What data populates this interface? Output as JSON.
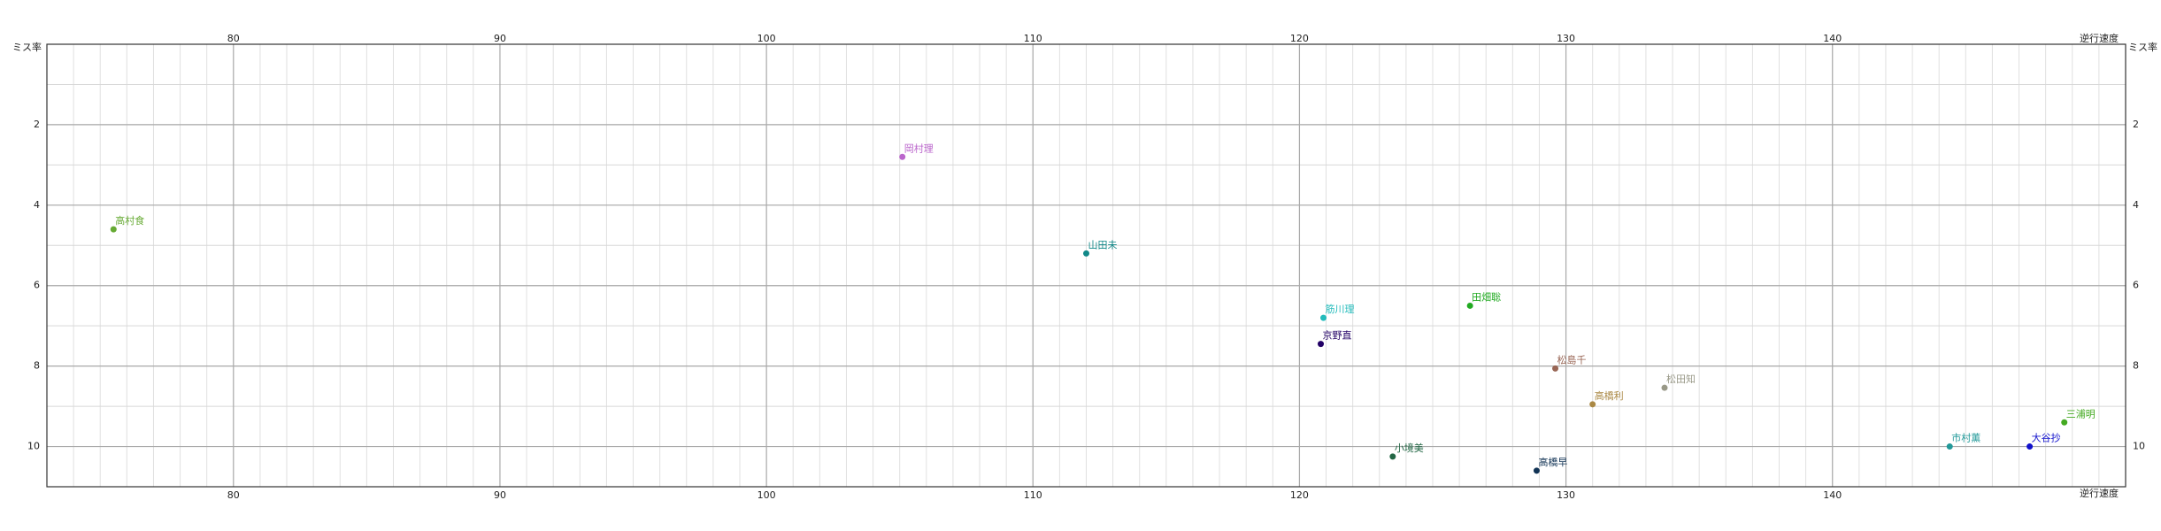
{
  "chart_data": {
    "type": "scatter",
    "xlabel": "逆行速度",
    "ylabel": "ミス率",
    "xlim": [
      73,
      151
    ],
    "ylim": [
      0,
      11
    ],
    "y_inverted": true,
    "xticks": [
      80,
      90,
      100,
      110,
      120,
      130,
      140
    ],
    "yticks": [
      2,
      4,
      6,
      8,
      10
    ],
    "grid": true,
    "minor_grid": true,
    "series": [
      {
        "name": "高村食",
        "color": "#66aa33",
        "x": [
          75.5
        ],
        "values": [
          4.6
        ]
      },
      {
        "name": "岡村理",
        "color": "#bb66cc",
        "x": [
          105.1
        ],
        "values": [
          2.8
        ]
      },
      {
        "name": "山田未",
        "color": "#118888",
        "x": [
          112.0
        ],
        "values": [
          5.2
        ]
      },
      {
        "name": "田畑聡",
        "color": "#22aa22",
        "x": [
          126.4
        ],
        "values": [
          6.5
        ]
      },
      {
        "name": "筋川理",
        "color": "#22bbbb",
        "x": [
          120.9
        ],
        "values": [
          6.8
        ]
      },
      {
        "name": "京野直",
        "color": "#220066",
        "x": [
          120.8
        ],
        "values": [
          7.45
        ]
      },
      {
        "name": "松島千",
        "color": "#996655",
        "x": [
          129.6
        ],
        "values": [
          8.06
        ]
      },
      {
        "name": "松田知",
        "color": "#999988",
        "x": [
          133.7
        ],
        "values": [
          8.54
        ]
      },
      {
        "name": "高橋利",
        "color": "#aa8844",
        "x": [
          131.0
        ],
        "values": [
          8.95
        ]
      },
      {
        "name": "三浦明",
        "color": "#44aa22",
        "x": [
          148.7
        ],
        "values": [
          9.4
        ]
      },
      {
        "name": "市村薫",
        "color": "#229999",
        "x": [
          144.4
        ],
        "values": [
          10.0
        ]
      },
      {
        "name": "大谷抄",
        "color": "#1111cc",
        "x": [
          147.4
        ],
        "values": [
          10.0
        ]
      },
      {
        "name": "小境美",
        "color": "#226644",
        "x": [
          123.5
        ],
        "values": [
          10.25
        ]
      },
      {
        "name": "高橋早",
        "color": "#113355",
        "x": [
          128.9
        ],
        "values": [
          10.6
        ]
      }
    ]
  }
}
